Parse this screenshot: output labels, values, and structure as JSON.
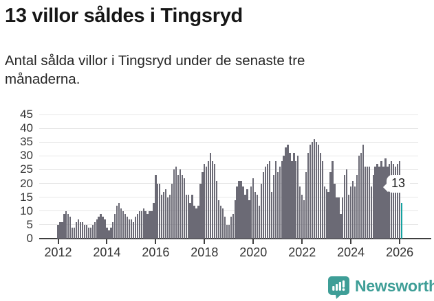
{
  "page": {
    "title": "13 villor såldes i Tingsryd",
    "subtitle": "Antal sålda villor i Tingsryd under de senaste tre månaderna."
  },
  "annotation": {
    "label": "13"
  },
  "footer": {
    "brand": "Newsworthy",
    "logo_icon": "newsworthy-speech-bubble-chart-icon"
  },
  "colors": {
    "bar": "#6b6a75",
    "highlight": "#14a2a0",
    "brand": "#3e9e97",
    "grid": "#e6e6e6",
    "axis": "#3f3f3f",
    "tick_text": "#333333"
  },
  "chart_data": {
    "type": "bar",
    "title": "13 villor såldes i Tingsryd",
    "subtitle": "Antal sålda villor i Tingsryd under de senaste tre månaderna.",
    "x_start": "2012-01",
    "x_end": "2026-02",
    "x_tick_labels": [
      "2012",
      "2014",
      "2016",
      "2018",
      "2020",
      "2022",
      "2024",
      "2026"
    ],
    "y_ticks": [
      0,
      5,
      10,
      15,
      20,
      25,
      30,
      35,
      40,
      45
    ],
    "ylim": [
      0,
      45
    ],
    "grid": true,
    "legend": false,
    "highlight_last_value": 13,
    "values": [
      5,
      6,
      6,
      9,
      10,
      9,
      8,
      4,
      4,
      6,
      7,
      6,
      6,
      5,
      5,
      4,
      4,
      5,
      6,
      7,
      8,
      9,
      8,
      7,
      4,
      3,
      4,
      6,
      9,
      12,
      13,
      11,
      10,
      9,
      8,
      7,
      7,
      6,
      8,
      9,
      10,
      10,
      11,
      10,
      9,
      10,
      10,
      13,
      23,
      20,
      20,
      16,
      17,
      18,
      15,
      16,
      20,
      25,
      26,
      23,
      25,
      23,
      22,
      16,
      16,
      13,
      16,
      12,
      11,
      12,
      20,
      24,
      27,
      26,
      28,
      31,
      28,
      27,
      21,
      14,
      12,
      11,
      8,
      5,
      5,
      8,
      9,
      14,
      19,
      21,
      21,
      19,
      16,
      18,
      14,
      19,
      22,
      17,
      16,
      12,
      20,
      24,
      26,
      27,
      28,
      17,
      23,
      28,
      24,
      26,
      28,
      30,
      33,
      34,
      31,
      28,
      31,
      28,
      30,
      19,
      16,
      14,
      24,
      31,
      34,
      35,
      36,
      35,
      34,
      31,
      28,
      19,
      18,
      17,
      24,
      28,
      20,
      15,
      15,
      9,
      15,
      23,
      25,
      16,
      19,
      21,
      19,
      23,
      30,
      31,
      34,
      26,
      26,
      26,
      19,
      23,
      26,
      27,
      26,
      28,
      26,
      29,
      26,
      27,
      28,
      27,
      26,
      27,
      28,
      13
    ]
  }
}
